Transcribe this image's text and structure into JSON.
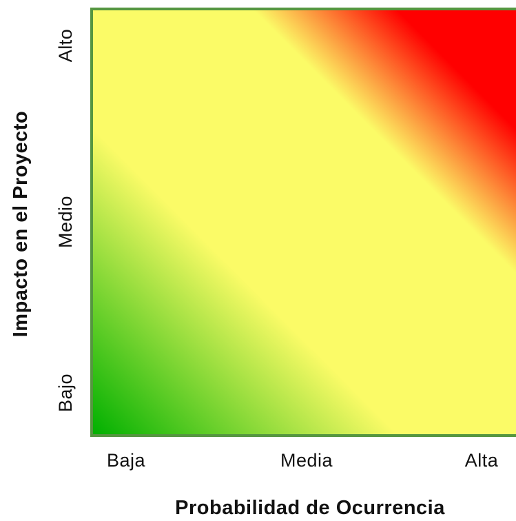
{
  "chart_data": {
    "type": "heatmap",
    "title": "",
    "xlabel": "Probabilidad de Ocurrencia",
    "ylabel": "Impacto en el Proyecto",
    "x_categories": [
      "Baja",
      "Media",
      "Alta"
    ],
    "y_categories": [
      "Bajo",
      "Medio",
      "Alto"
    ],
    "gradient_direction": "bottom-left to top-right",
    "color_stops": [
      {
        "position": 0.0,
        "color": "#00b000"
      },
      {
        "position": 0.36,
        "color": "#fbfb67"
      },
      {
        "position": 0.69,
        "color": "#fbfb67"
      },
      {
        "position": 0.86,
        "color": "#ff0000"
      },
      {
        "position": 1.0,
        "color": "#ff0000"
      }
    ],
    "grid": false,
    "legend": "none",
    "frame_color": "#559640"
  }
}
